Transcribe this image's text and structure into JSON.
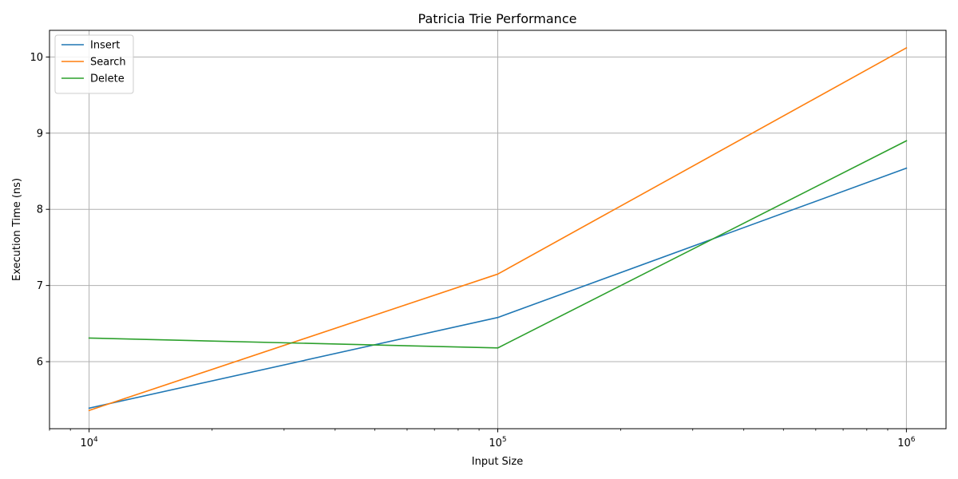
{
  "chart_data": {
    "type": "line",
    "title": "Patricia Trie Performance",
    "xlabel": "Input Size",
    "ylabel": "Execution Time (ns)",
    "x_scale": "log",
    "y_scale": "linear",
    "x": [
      10000,
      100000,
      1000000
    ],
    "xlim": [
      8000,
      1250000
    ],
    "ylim": [
      5.12,
      10.35
    ],
    "x_ticks": [
      {
        "value": 10000,
        "base": "10",
        "exp": "4"
      },
      {
        "value": 100000,
        "base": "10",
        "exp": "5"
      },
      {
        "value": 1000000,
        "base": "10",
        "exp": "6"
      }
    ],
    "y_ticks": [
      6,
      7,
      8,
      9,
      10
    ],
    "grid": true,
    "legend_position": "top-left",
    "series": [
      {
        "name": "Insert",
        "color": "#1f77b4",
        "values": [
          5.39,
          6.58,
          8.54
        ]
      },
      {
        "name": "Search",
        "color": "#ff7f0e",
        "values": [
          5.36,
          7.15,
          10.12
        ]
      },
      {
        "name": "Delete",
        "color": "#2ca02c",
        "values": [
          6.31,
          6.18,
          8.9
        ]
      }
    ]
  }
}
